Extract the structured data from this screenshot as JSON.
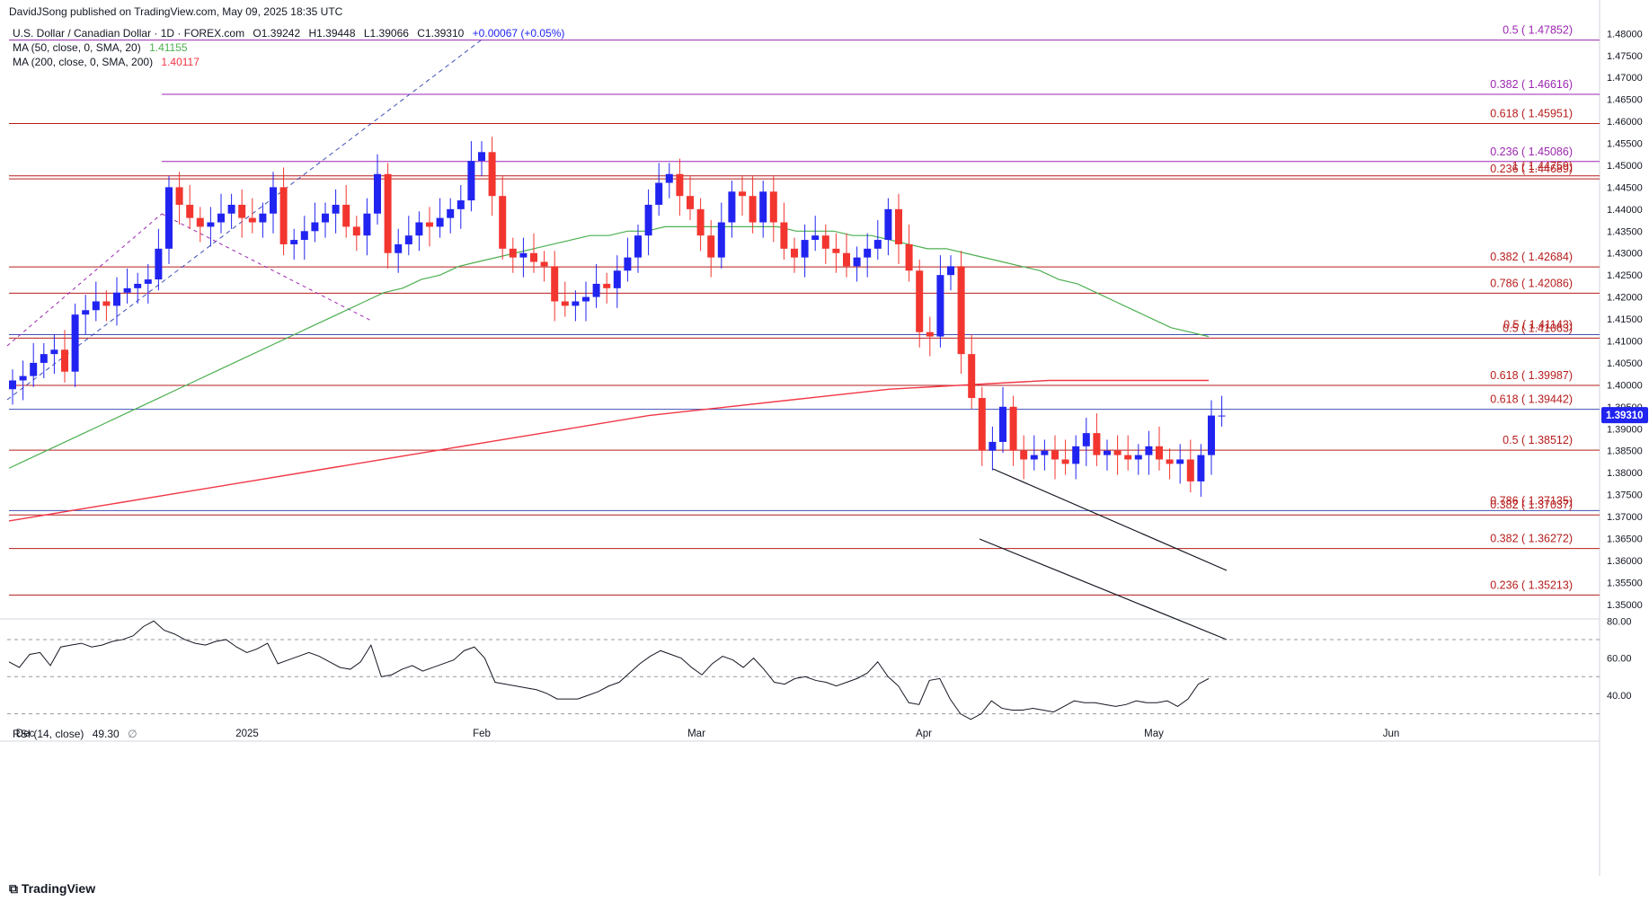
{
  "header": {
    "publisher": "DavidJSong published on TradingView.com, May 09, 2025 18:35 UTC",
    "symbol": "U.S. Dollar / Canadian Dollar · 1D · FOREX.com",
    "ohlc": {
      "o": "O1.39242",
      "h": "H1.39448",
      "l": "L1.39066",
      "c": "C1.39310",
      "chg": "+0.00067 (+0.05%)"
    },
    "ma50_label": "MA (50, close, 0, SMA, 20)",
    "ma50_value": "1.41155",
    "ma200_label": "MA (200, close, 0, SMA, 200)",
    "ma200_value": "1.40117",
    "rsi_label": "RSI (14, close)",
    "rsi_value": "49.30",
    "rsi_extra": "∅"
  },
  "brand": "TradingView",
  "colors": {
    "up": "#2124f0",
    "down": "#f2362f",
    "ma50": "#4caf50",
    "ma200": "#f23645",
    "fib": "#9c27b0",
    "price_tag": "#2124f0"
  },
  "chart_data": [
    {
      "type": "candlestick",
      "x_ticks": [
        "Dec",
        "2025",
        "Feb",
        "Mar",
        "Apr",
        "May",
        "Jun"
      ],
      "y_ticks": [
        "1.48000",
        "1.47500",
        "1.47000",
        "1.46500",
        "1.46000",
        "1.45500",
        "1.45000",
        "1.44500",
        "1.44000",
        "1.43500",
        "1.43000",
        "1.42500",
        "1.42000",
        "1.41500",
        "1.41000",
        "1.40500",
        "1.40000",
        "1.39500",
        "1.39000",
        "1.38500",
        "1.38000",
        "1.37500",
        "1.37000",
        "1.36500",
        "1.36000",
        "1.35500",
        "1.35000"
      ],
      "ylim": [
        1.3475,
        1.4815
      ],
      "last_price": "1.39310",
      "closes": [
        1.401,
        1.402,
        1.405,
        1.407,
        1.408,
        1.403,
        1.416,
        1.417,
        1.419,
        1.418,
        1.421,
        1.422,
        1.423,
        1.424,
        1.431,
        1.445,
        1.441,
        1.438,
        1.436,
        1.437,
        1.439,
        1.441,
        1.438,
        1.437,
        1.439,
        1.445,
        1.432,
        1.433,
        1.435,
        1.437,
        1.439,
        1.441,
        1.436,
        1.434,
        1.439,
        1.448,
        1.43,
        1.432,
        1.434,
        1.437,
        1.436,
        1.438,
        1.44,
        1.442,
        1.451,
        1.453,
        1.443,
        1.431,
        1.429,
        1.43,
        1.428,
        1.427,
        1.419,
        1.418,
        1.419,
        1.42,
        1.423,
        1.422,
        1.426,
        1.429,
        1.434,
        1.441,
        1.446,
        1.448,
        1.443,
        1.44,
        1.434,
        1.429,
        1.437,
        1.444,
        1.443,
        1.437,
        1.444,
        1.437,
        1.431,
        1.429,
        1.433,
        1.434,
        1.431,
        1.43,
        1.427,
        1.429,
        1.431,
        1.433,
        1.44,
        1.432,
        1.426,
        1.412,
        1.411,
        1.425,
        1.427,
        1.407,
        1.397,
        1.385,
        1.387,
        1.395,
        1.385,
        1.383,
        1.384,
        1.385,
        1.383,
        1.382,
        1.386,
        1.389,
        1.384,
        1.385,
        1.384,
        1.383,
        1.384,
        1.386,
        1.383,
        1.382,
        1.383,
        1.378,
        1.384,
        1.393,
        1.393
      ],
      "ma50": [
        1.381,
        1.383,
        1.385,
        1.387,
        1.389,
        1.391,
        1.393,
        1.395,
        1.397,
        1.399,
        1.401,
        1.403,
        1.405,
        1.407,
        1.409,
        1.411,
        1.413,
        1.415,
        1.417,
        1.419,
        1.421,
        1.422,
        1.424,
        1.425,
        1.427,
        1.428,
        1.429,
        1.43,
        1.431,
        1.432,
        1.433,
        1.434,
        1.434,
        1.435,
        1.435,
        1.436,
        1.436,
        1.436,
        1.436,
        1.436,
        1.436,
        1.436,
        1.435,
        1.435,
        1.435,
        1.434,
        1.434,
        1.433,
        1.432,
        1.431,
        1.431,
        1.43,
        1.429,
        1.428,
        1.427,
        1.426,
        1.424,
        1.423,
        1.421,
        1.419,
        1.417,
        1.415,
        1.413,
        1.412,
        1.411
      ],
      "ma200": [
        1.369,
        1.372,
        1.375,
        1.378,
        1.381,
        1.384,
        1.387,
        1.39,
        1.393,
        1.395,
        1.397,
        1.399,
        1.4,
        1.401,
        1.401,
        1.401
      ],
      "fib_levels": [
        {
          "label": "0.5 ( 1.47852)",
          "value": 1.47852
        },
        {
          "label": "0.382 ( 1.46616)",
          "value": 1.46616
        },
        {
          "label": "0.618 ( 1.45951)",
          "value": 1.45951
        },
        {
          "label": "0.236 ( 1.45086)",
          "value": 1.45086
        },
        {
          "label": "1 ( 1.44759)",
          "value": 1.44759
        },
        {
          "label": "0.236 ( 1.44689)",
          "value": 1.44689
        },
        {
          "label": "0.382 ( 1.42684)",
          "value": 1.42684
        },
        {
          "label": "0.786 ( 1.42086)",
          "value": 1.42086
        },
        {
          "label": "0.5 ( 1.41143)",
          "value": 1.41143
        },
        {
          "label": "0.5 ( 1.41063)",
          "value": 1.41063
        },
        {
          "label": "0.618 ( 1.39987)",
          "value": 1.39987
        },
        {
          "label": "0.618 ( 1.39442)",
          "value": 1.39442
        },
        {
          "label": "0.5 ( 1.38512)",
          "value": 1.38512
        },
        {
          "label": "0.786 ( 1.37135)",
          "value": 1.37135
        },
        {
          "label": "0.382 ( 1.37037)",
          "value": 1.37037
        },
        {
          "label": "0.382 ( 1.36272)",
          "value": 1.36272
        },
        {
          "label": "0.236 ( 1.35213)",
          "value": 1.35213
        }
      ]
    },
    {
      "type": "line",
      "name": "RSI (14, close)",
      "y_ticks": [
        "80.00",
        "60.00",
        "40.00"
      ],
      "ylim": [
        25,
        84
      ],
      "bands": [
        70,
        50,
        30
      ],
      "values": [
        58,
        55,
        62,
        63,
        56,
        66,
        67,
        68,
        66,
        67,
        69,
        70,
        72,
        77,
        80,
        75,
        73,
        70,
        68,
        67,
        69,
        70,
        66,
        63,
        65,
        68,
        57,
        59,
        61,
        63,
        61,
        58,
        55,
        54,
        58,
        67,
        50,
        51,
        54,
        56,
        53,
        55,
        57,
        59,
        64,
        66,
        60,
        47,
        46,
        45,
        44,
        43,
        41,
        38,
        38,
        38,
        40,
        42,
        45,
        47,
        52,
        57,
        61,
        64,
        62,
        60,
        55,
        51,
        57,
        61,
        59,
        55,
        60,
        54,
        47,
        46,
        49,
        50,
        48,
        47,
        45,
        47,
        49,
        52,
        58,
        50,
        45,
        36,
        35,
        48,
        49,
        38,
        30,
        27,
        30,
        37,
        33,
        32,
        32,
        33,
        32,
        31,
        34,
        37,
        36,
        36,
        35,
        34,
        35,
        37,
        36,
        36,
        37,
        34,
        38,
        46,
        49
      ]
    }
  ]
}
